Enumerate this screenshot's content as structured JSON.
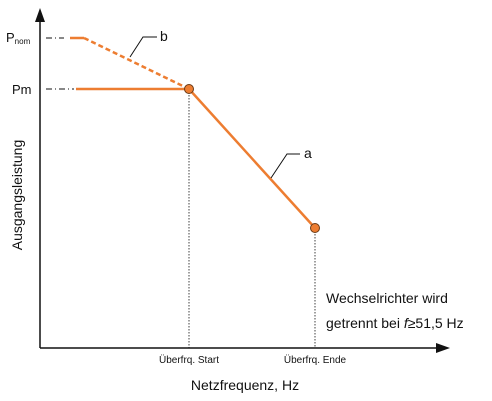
{
  "colors": {
    "curve": "#ED7D31",
    "axis": "#111111",
    "marker_fill": "#ED7D31",
    "marker_stroke": "#6b3a14"
  },
  "y_axis": {
    "label": "Ausgangsleistung",
    "tick_pnom_main": "P",
    "tick_pnom_sub": "nom",
    "tick_pm": "Pm"
  },
  "x_axis": {
    "label": "Netzfrequenz, Hz",
    "tick_start": "Überfrq. Start",
    "tick_end": "Überfrq. Ende"
  },
  "curves": {
    "a_label": "a",
    "b_label": "b"
  },
  "annotation": {
    "line1": "Wechselrichter wird",
    "line2_prefix": "getrennt bei ",
    "line2_var": "f",
    "line2_rest": "≥51,5 Hz"
  }
}
